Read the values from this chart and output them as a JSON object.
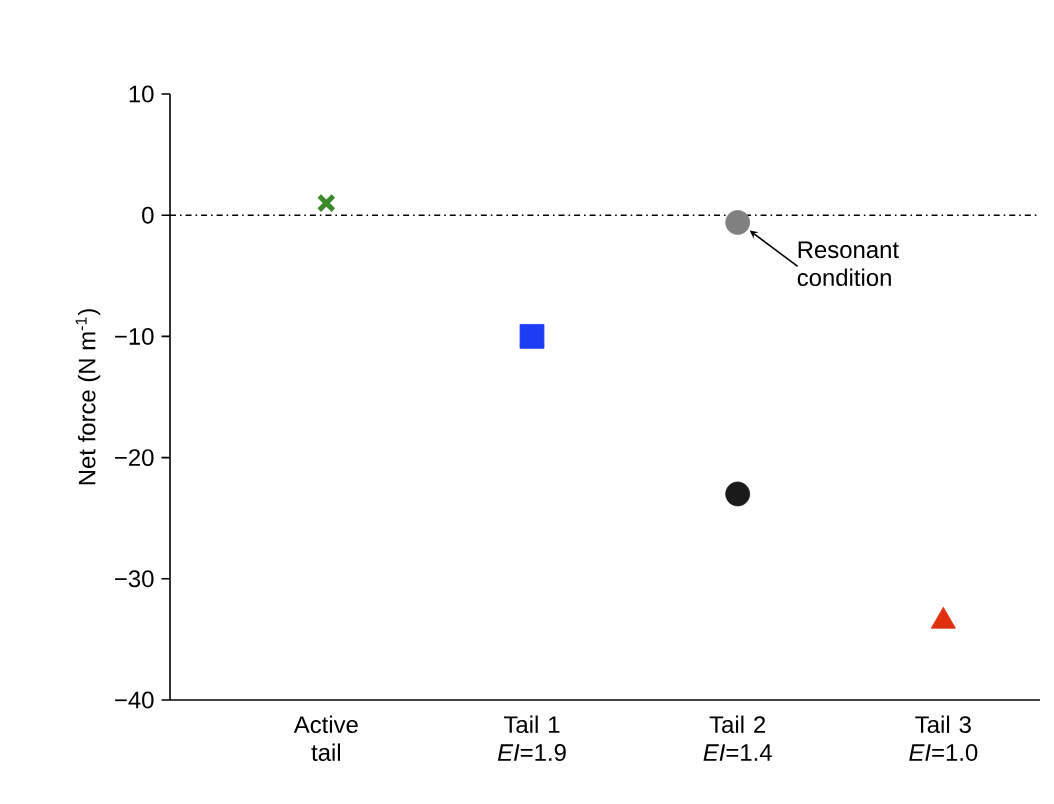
{
  "chart_data": {
    "type": "scatter",
    "ylabel": "Net force (N m$^{-1}$)",
    "categories": [
      "Active tail",
      "Tail 1 *EI*=1.9",
      "Tail 2 *EI*=1.4",
      "Tail 3 *EI*=1.0"
    ],
    "series": [
      {
        "color": "#3a8a2a",
        "marker": "cross",
        "values": [
          1,
          null,
          null,
          null
        ]
      },
      {
        "color": "#1f3cf5",
        "marker": "square",
        "values": [
          null,
          -10,
          null,
          null
        ]
      },
      {
        "color": "#808080",
        "marker": "circle",
        "values": [
          null,
          null,
          -0.6,
          null
        ]
      },
      {
        "color": "#1a1a1a",
        "marker": "circle",
        "values": [
          null,
          null,
          -23,
          null
        ]
      },
      {
        "color": "#e03010",
        "marker": "triangle",
        "values": [
          null,
          null,
          null,
          -33.5
        ]
      }
    ],
    "ylim": [
      -40,
      10
    ],
    "yticks": [
      {
        "value": -40,
        "label": "−40"
      },
      {
        "value": -30,
        "label": "−30"
      },
      {
        "value": -20,
        "label": "−20"
      },
      {
        "value": -10,
        "label": "−10"
      },
      0,
      10
    ],
    "ref_lines": [
      {
        "axis": "y",
        "value": 0,
        "color": "#000000",
        "line_style": "dashdot"
      }
    ],
    "annotations": [
      {
        "text": "Resonant condition",
        "x": "Tail 2 *EI*=1.4",
        "y": -0.6
      }
    ]
  }
}
